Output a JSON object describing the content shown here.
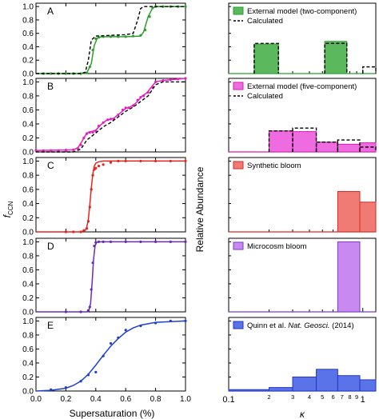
{
  "figure": {
    "left_xlabel": "Supersaturation (%)",
    "left_ylabel": "f",
    "left_ylabel_sub": "CCN",
    "right_xlabel": "κ",
    "right_ylabel": "Relative Abundance"
  },
  "chart_data": [
    {
      "type": "line",
      "panel": "A",
      "letter": "A",
      "xlim": [
        0,
        1.0
      ],
      "ylim": [
        0,
        1.05
      ],
      "xticks": [
        0.0,
        0.2,
        0.4,
        0.6,
        0.8,
        1.0
      ],
      "yticks": [
        0.0,
        0.2,
        0.4,
        0.6,
        0.8,
        1.0
      ],
      "color": "#2e9e2e",
      "series": [
        {
          "style": "points",
          "x": [
            0.05,
            0.1,
            0.15,
            0.2,
            0.25,
            0.3,
            0.34,
            0.36,
            0.38,
            0.4,
            0.42,
            0.45,
            0.5,
            0.55,
            0.6,
            0.65,
            0.7,
            0.73,
            0.76,
            0.78,
            0.8,
            0.85,
            0.9,
            0.95,
            1.0
          ],
          "y": [
            0,
            0,
            0,
            0,
            0,
            0,
            0.01,
            0.1,
            0.35,
            0.52,
            0.54,
            0.55,
            0.55,
            0.55,
            0.55,
            0.56,
            0.57,
            0.65,
            0.85,
            0.98,
            1.0,
            1.0,
            1.0,
            1.0,
            1.0
          ]
        },
        {
          "style": "fit",
          "x": [
            0,
            0.3,
            0.34,
            0.37,
            0.39,
            0.41,
            0.44,
            0.5,
            0.6,
            0.7,
            0.72,
            0.75,
            0.78,
            0.8,
            0.85,
            1.0
          ],
          "y": [
            0,
            0,
            0.01,
            0.15,
            0.42,
            0.53,
            0.55,
            0.55,
            0.55,
            0.56,
            0.62,
            0.85,
            0.98,
            1.0,
            1.0,
            1.0
          ]
        },
        {
          "style": "calc",
          "x": [
            0,
            0.3,
            0.33,
            0.35,
            0.37,
            0.4,
            0.5,
            0.6,
            0.65,
            0.68,
            0.7,
            0.72,
            0.75,
            1.0
          ],
          "y": [
            0,
            0,
            0.02,
            0.2,
            0.5,
            0.56,
            0.57,
            0.58,
            0.6,
            0.8,
            0.97,
            1.0,
            1.0,
            1.0
          ]
        }
      ]
    },
    {
      "type": "line",
      "panel": "B",
      "letter": "B",
      "xlim": [
        0,
        1.0
      ],
      "ylim": [
        0,
        1.05
      ],
      "xticks": [
        0.0,
        0.2,
        0.4,
        0.6,
        0.8,
        1.0
      ],
      "yticks": [
        0.0,
        0.2,
        0.4,
        0.6,
        0.8,
        1.0
      ],
      "color": "#e61ebe",
      "series": [
        {
          "style": "points",
          "x": [
            0,
            0.05,
            0.1,
            0.15,
            0.2,
            0.25,
            0.28,
            0.3,
            0.32,
            0.34,
            0.36,
            0.38,
            0.4,
            0.42,
            0.45,
            0.48,
            0.5,
            0.52,
            0.55,
            0.58,
            0.6,
            0.62,
            0.65,
            0.68,
            0.7,
            0.72,
            0.75,
            0.78,
            0.8,
            0.85,
            0.9,
            0.95,
            1.0
          ],
          "y": [
            0.02,
            0.02,
            0.02,
            0.02,
            0.02,
            0.03,
            0.05,
            0.1,
            0.2,
            0.26,
            0.28,
            0.28,
            0.3,
            0.37,
            0.42,
            0.46,
            0.47,
            0.47,
            0.53,
            0.6,
            0.63,
            0.63,
            0.66,
            0.74,
            0.78,
            0.8,
            0.85,
            0.92,
            1.0,
            1.02,
            1.03,
            1.04,
            1.05
          ]
        },
        {
          "style": "fit",
          "x": [
            0,
            0.25,
            0.28,
            0.31,
            0.34,
            0.37,
            0.4,
            0.43,
            0.47,
            0.52,
            0.56,
            0.6,
            0.63,
            0.67,
            0.71,
            0.74,
            0.77,
            0.8,
            0.85,
            1.0
          ],
          "y": [
            0.02,
            0.03,
            0.06,
            0.16,
            0.27,
            0.29,
            0.31,
            0.38,
            0.45,
            0.48,
            0.55,
            0.62,
            0.64,
            0.7,
            0.8,
            0.84,
            0.92,
            1.0,
            1.02,
            1.05
          ]
        },
        {
          "style": "calc",
          "x": [
            0,
            0.25,
            0.3,
            0.34,
            0.4,
            0.45,
            0.5,
            0.55,
            0.6,
            0.65,
            0.7,
            0.75,
            0.8,
            0.85,
            1.0
          ],
          "y": [
            0,
            0,
            0.04,
            0.17,
            0.27,
            0.36,
            0.42,
            0.5,
            0.58,
            0.64,
            0.72,
            0.8,
            0.96,
            1.0,
            1.0
          ]
        }
      ]
    },
    {
      "type": "line",
      "panel": "C",
      "letter": "C",
      "xlim": [
        0,
        1.0
      ],
      "ylim": [
        0,
        1.05
      ],
      "xticks": [
        0.0,
        0.2,
        0.4,
        0.6,
        0.8,
        1.0
      ],
      "yticks": [
        0.0,
        0.2,
        0.4,
        0.6,
        0.8,
        1.0
      ],
      "color": "#e8241e",
      "series": [
        {
          "style": "points",
          "x": [
            0.2,
            0.25,
            0.3,
            0.32,
            0.34,
            0.35,
            0.36,
            0.37,
            0.38,
            0.39,
            0.4,
            0.42,
            0.45,
            0.5,
            0.55,
            0.6,
            0.7,
            0.8,
            0.9,
            1.0
          ],
          "y": [
            0,
            0,
            0,
            0.02,
            0.05,
            0.15,
            0.35,
            0.6,
            0.8,
            0.88,
            0.9,
            0.93,
            0.95,
            0.98,
            1.0,
            1.0,
            1.0,
            1.0,
            1.0,
            1.0
          ]
        },
        {
          "style": "fit",
          "x": [
            0,
            0.3,
            0.33,
            0.34,
            0.35,
            0.36,
            0.37,
            0.38,
            0.39,
            0.4,
            0.42,
            0.45,
            0.5,
            1.0
          ],
          "y": [
            0,
            0,
            0.02,
            0.07,
            0.18,
            0.38,
            0.62,
            0.82,
            0.93,
            0.97,
            0.99,
            1.0,
            1.0,
            1.0
          ]
        }
      ]
    },
    {
      "type": "line",
      "panel": "D",
      "letter": "D",
      "xlim": [
        0,
        1.0
      ],
      "ylim": [
        0,
        1.05
      ],
      "xticks": [
        0.0,
        0.2,
        0.4,
        0.6,
        0.8,
        1.0
      ],
      "yticks": [
        0.0,
        0.2,
        0.4,
        0.6,
        0.8,
        1.0
      ],
      "color": "#6a2bb8",
      "series": [
        {
          "style": "points",
          "x": [
            0.2,
            0.3,
            0.35,
            0.36,
            0.37,
            0.38,
            0.39,
            0.4,
            0.42,
            0.45,
            0.5,
            0.6,
            0.7,
            0.8,
            0.9,
            1.0
          ],
          "y": [
            0,
            0,
            0.02,
            0.07,
            0.32,
            0.7,
            0.94,
            0.99,
            1.0,
            1.0,
            1.0,
            1.0,
            1.0,
            1.0,
            1.0,
            1.0
          ]
        },
        {
          "style": "fit",
          "x": [
            0,
            0.34,
            0.355,
            0.365,
            0.375,
            0.385,
            0.395,
            0.405,
            0.42,
            1.0
          ],
          "y": [
            0,
            0,
            0.03,
            0.12,
            0.4,
            0.75,
            0.94,
            0.99,
            1.0,
            1.0
          ]
        }
      ]
    },
    {
      "type": "line",
      "panel": "E",
      "letter": "E",
      "xlim": [
        0,
        1.0
      ],
      "ylim": [
        0,
        1.05
      ],
      "xticks": [
        0.0,
        0.2,
        0.4,
        0.6,
        0.8,
        1.0
      ],
      "xticklabels": [
        "0.0",
        "0.2",
        "0.4",
        "0.6",
        "0.8",
        "1.0"
      ],
      "yticks": [
        0.0,
        0.2,
        0.4,
        0.6,
        0.8,
        1.0
      ],
      "color": "#1f3fd1",
      "series": [
        {
          "style": "points",
          "x": [
            0.1,
            0.2,
            0.3,
            0.35,
            0.4,
            0.45,
            0.5,
            0.55,
            0.6,
            0.7,
            0.8,
            0.9,
            1.0
          ],
          "y": [
            0.02,
            0.05,
            0.14,
            0.23,
            0.27,
            0.5,
            0.68,
            0.76,
            0.87,
            0.93,
            0.97,
            1.0,
            1.0
          ]
        },
        {
          "style": "fit",
          "x": [
            0,
            0.1,
            0.2,
            0.25,
            0.3,
            0.35,
            0.4,
            0.45,
            0.5,
            0.55,
            0.6,
            0.65,
            0.7,
            0.8,
            0.9,
            1.0
          ],
          "y": [
            0,
            0.01,
            0.04,
            0.08,
            0.14,
            0.24,
            0.37,
            0.51,
            0.64,
            0.75,
            0.84,
            0.9,
            0.94,
            0.98,
            0.99,
            1.0
          ]
        }
      ]
    },
    {
      "type": "bar",
      "panel": "A-right",
      "xscale": "log",
      "xlim": [
        0.1,
        1.25
      ],
      "ylim": [
        0,
        1.05
      ],
      "color": "#2e9e2e",
      "fill": "#5cb85c",
      "legend": {
        "label": "External model (two-component)",
        "calc_label": "Calculated"
      },
      "bars": [
        {
          "x0": 0.155,
          "x1": 0.235,
          "value": 0.44
        },
        {
          "x0": 0.52,
          "x1": 0.76,
          "value": 0.48
        }
      ],
      "calc": [
        {
          "x0": 0.155,
          "x1": 0.235,
          "value": 0.45
        },
        {
          "x0": 0.52,
          "x1": 0.76,
          "value": 0.45
        },
        {
          "x0": 1.0,
          "x1": 1.25,
          "value": 0.1
        }
      ]
    },
    {
      "type": "bar",
      "panel": "B-right",
      "xscale": "log",
      "xlim": [
        0.1,
        1.25
      ],
      "ylim": [
        0,
        1.05
      ],
      "color": "#d41cb0",
      "fill": "#ee6be0",
      "legend": {
        "label": "External model (five-component)",
        "calc_label": "Calculated"
      },
      "bars": [
        {
          "x0": 0.2,
          "x1": 0.3,
          "value": 0.3
        },
        {
          "x0": 0.3,
          "x1": 0.45,
          "value": 0.29
        },
        {
          "x0": 0.45,
          "x1": 0.65,
          "value": 0.14
        },
        {
          "x0": 0.65,
          "x1": 0.95,
          "value": 0.11
        },
        {
          "x0": 0.95,
          "x1": 1.25,
          "value": 0.13
        }
      ],
      "calc": [
        {
          "x0": 0.2,
          "x1": 0.3,
          "value": 0.3
        },
        {
          "x0": 0.3,
          "x1": 0.45,
          "value": 0.34
        },
        {
          "x0": 0.45,
          "x1": 0.65,
          "value": 0.14
        },
        {
          "x0": 0.65,
          "x1": 0.95,
          "value": 0.17
        },
        {
          "x0": 0.95,
          "x1": 1.25,
          "value": 0.07
        }
      ]
    },
    {
      "type": "bar",
      "panel": "C-right",
      "xscale": "log",
      "xlim": [
        0.1,
        1.25
      ],
      "ylim": [
        0,
        1.05
      ],
      "color": "#d62a24",
      "fill": "#f07a74",
      "legend": {
        "label": "Synthetic bloom"
      },
      "bars": [
        {
          "x0": 0.65,
          "x1": 0.95,
          "value": 0.57
        },
        {
          "x0": 0.95,
          "x1": 1.25,
          "value": 0.42
        }
      ]
    },
    {
      "type": "bar",
      "panel": "D-right",
      "xscale": "log",
      "xlim": [
        0.1,
        1.25
      ],
      "ylim": [
        0,
        1.05
      ],
      "color": "#7a3bc8",
      "fill": "#c98af0",
      "legend": {
        "label": "Microcosm bloom"
      },
      "bars": [
        {
          "x0": 0.65,
          "x1": 0.95,
          "value": 1.0
        }
      ]
    },
    {
      "type": "bar",
      "panel": "E-right",
      "xscale": "log",
      "xlim": [
        0.1,
        1.25
      ],
      "ylim": [
        0,
        1.05
      ],
      "color": "#2236c4",
      "fill": "#5b73e8",
      "legend": {
        "label_pre": "Quinn et al. ",
        "label_italic": "Nat. Geosci.",
        "label_post": " (2014)"
      },
      "bars": [
        {
          "x0": 0.1,
          "x1": 0.2,
          "value": 0.02
        },
        {
          "x0": 0.2,
          "x1": 0.3,
          "value": 0.05
        },
        {
          "x0": 0.3,
          "x1": 0.45,
          "value": 0.2
        },
        {
          "x0": 0.45,
          "x1": 0.65,
          "value": 0.31
        },
        {
          "x0": 0.65,
          "x1": 0.95,
          "value": 0.22
        },
        {
          "x0": 0.95,
          "x1": 1.25,
          "value": 0.16
        }
      ],
      "xticks_major": [
        0.1,
        1
      ],
      "xticklabels_major": [
        "0.1",
        "1"
      ],
      "xticks_minor": [
        2,
        3,
        4,
        5,
        6,
        7,
        8,
        9
      ],
      "xticklabels_minor": [
        "2",
        "3",
        "4",
        "5",
        "6",
        "7",
        "8",
        "9"
      ]
    }
  ]
}
